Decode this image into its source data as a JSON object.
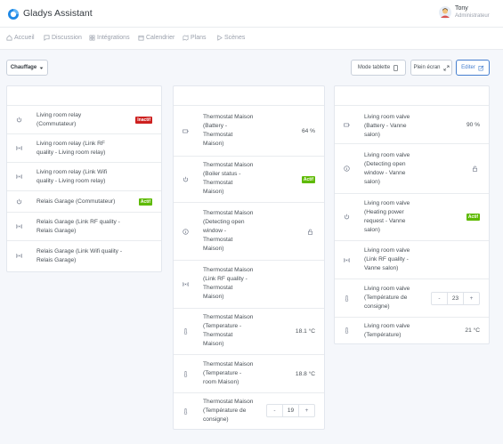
{
  "app": {
    "title": "Gladys Assistant"
  },
  "user": {
    "name": "Tony",
    "role": "Administrateur"
  },
  "nav": [
    "Accueil",
    "Discussion",
    "Intégrations",
    "Calendrier",
    "Plans",
    "Scènes"
  ],
  "toolbar": {
    "room_select": "Chauffage",
    "tablet_mode": "Mode tablette",
    "fullscreen": "Plein écran",
    "edit": "Editer"
  },
  "columns": [
    {
      "rows": [
        {
          "label": [
            "Living room relay",
            "(Commutateur)"
          ],
          "icon": "power-icon",
          "status": "Inactif",
          "status_color": "#cd201f"
        },
        {
          "label": [
            "Living room relay (Link RF",
            "quality - Living room relay)"
          ],
          "icon": "signal-icon"
        },
        {
          "label": [
            "Living room relay (Link Wifi",
            "quality - Living room relay)"
          ],
          "icon": "signal-icon"
        },
        {
          "label": [
            "Relais Garage (Commutateur)"
          ],
          "icon": "power-icon",
          "status": "Actif",
          "status_color": "#5eba00"
        },
        {
          "label": [
            "Relais Garage (Link RF quality -",
            "Relais Garage)"
          ],
          "icon": "signal-icon"
        },
        {
          "label": [
            "Relais Garage (Link Wifi quality -",
            "Relais Garage)"
          ],
          "icon": "signal-icon"
        }
      ]
    },
    {
      "rows": [
        {
          "label": [
            "Thermostat Maison",
            "(Battery -",
            "Thermostat",
            "Maison)"
          ],
          "icon": "battery-icon",
          "value": "64 %"
        },
        {
          "label": [
            "Thermostat Maison",
            "(Boiler status -",
            "Thermostat",
            "Maison)"
          ],
          "icon": "power-icon",
          "status": "Actif",
          "status_color": "#5eba00"
        },
        {
          "label": [
            "Thermostat Maison",
            "(Detecting open",
            "window -",
            "Thermostat",
            "Maison)"
          ],
          "icon": "info-icon"
        },
        {
          "label": [
            "Thermostat Maison",
            "(Link RF quality -",
            "Thermostat",
            "Maison)"
          ],
          "icon": "signal-icon"
        },
        {
          "label": [
            "Thermostat Maison",
            "(Temperature -",
            "Thermostat",
            "Maison)"
          ],
          "icon": "thermometer-icon",
          "value": "18.1 °C"
        },
        {
          "label": [
            "Thermostat Maison",
            "(Temperature -",
            "room Maison)"
          ],
          "icon": "thermometer-icon",
          "value": "18.8 °C"
        },
        {
          "label": [
            "Thermostat Maison",
            "(Température de",
            "consigne)"
          ],
          "icon": "thermometer-icon",
          "setpoint": "19"
        }
      ]
    },
    {
      "rows": [
        {
          "label": [
            "Living room valve",
            "(Battery - Vanne",
            "salon)"
          ],
          "icon": "battery-icon",
          "value": "90 %"
        },
        {
          "label": [
            "Living room valve",
            "(Detecting open",
            "window - Vanne",
            "salon)"
          ],
          "icon": "info-icon"
        },
        {
          "label": [
            "Living room valve",
            "(Heating power",
            "request - Vanne",
            "salon)"
          ],
          "icon": "power-icon",
          "status": "Actif",
          "status_color": "#5eba00"
        },
        {
          "label": [
            "Living room valve",
            "(Link RF quality -",
            "Vanne salon)"
          ],
          "icon": "signal-icon"
        },
        {
          "label": [
            "Living room valve",
            "(Température de",
            "consigne)"
          ],
          "icon": "thermometer-icon",
          "setpoint": "23"
        },
        {
          "label": [
            "Living room valve",
            "(Température)"
          ],
          "icon": "thermometer-icon",
          "value": "21 °C"
        }
      ]
    }
  ]
}
